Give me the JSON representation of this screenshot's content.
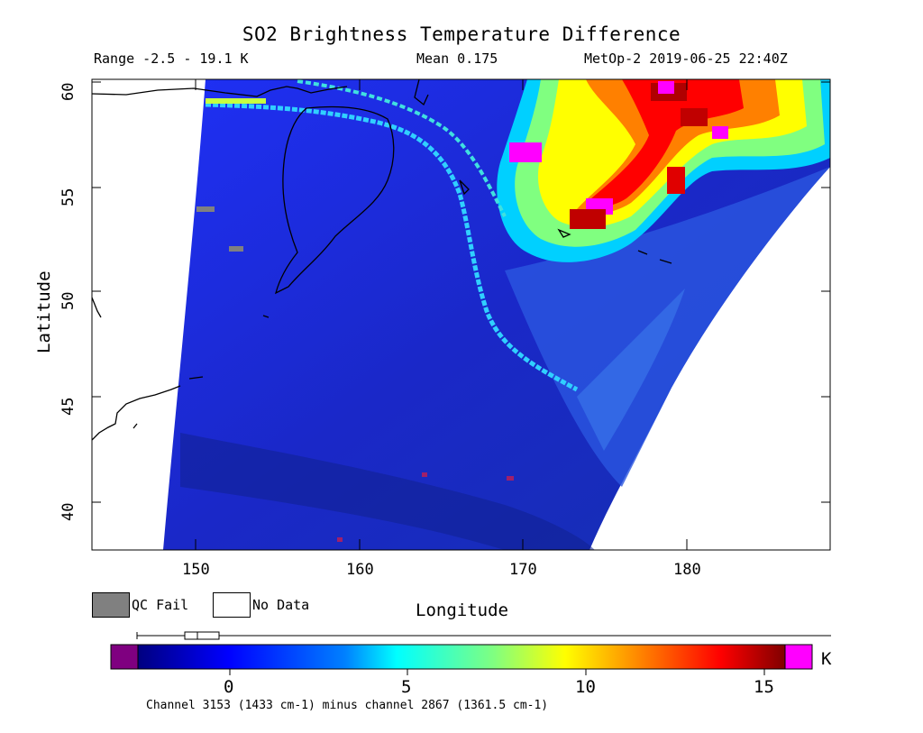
{
  "title": "SO2 Brightness Temperature Difference",
  "header": {
    "range": "Range -2.5 - 19.1 K",
    "mean": "Mean 0.175",
    "satellite": "MetOp-2 2019-06-25 22:40Z"
  },
  "axes": {
    "ylabel": "Latitude",
    "xlabel": "Longitude",
    "yticks": [
      "40",
      "45",
      "50",
      "55",
      "60"
    ],
    "xticks": [
      "150",
      "160",
      "170",
      "180"
    ],
    "ylim": [
      37.5,
      60
    ],
    "xlim": [
      144.2,
      188.8
    ]
  },
  "legend": {
    "qc_fail": "QC Fail",
    "no_data": "No Data",
    "qc_color": "#808080",
    "nodata_color": "#ffffff"
  },
  "colorbar": {
    "unit": "K",
    "ticks": [
      "0",
      "5",
      "10",
      "15"
    ],
    "range": [
      -2.5,
      16.1
    ],
    "below_color": "#7f0080",
    "above_color": "#ff00ff",
    "caption": "Channel 3153 (1433 cm-1) minus channel 2867 (1361.5 cm-1)"
  },
  "chart_data": {
    "type": "heatmap",
    "title": "SO2 Brightness Temperature Difference",
    "xlabel": "Longitude",
    "ylabel": "Latitude",
    "xlim": [
      144.2,
      188.8
    ],
    "ylim": [
      37.5,
      60
    ],
    "colorbar_ticks": [
      0,
      5,
      10,
      15
    ],
    "unit": "K",
    "range_min": -2.5,
    "range_max": 19.1,
    "mean": 0.175
  }
}
